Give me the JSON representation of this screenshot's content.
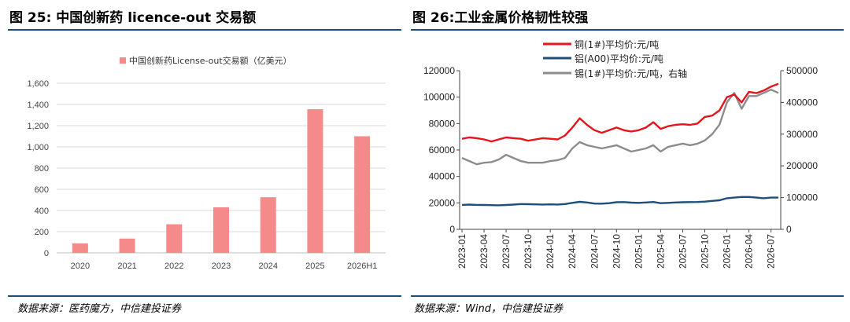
{
  "left": {
    "figure_title": "图 25:  中国创新药 licence-out 交易额",
    "source": "数据来源：医药魔方，中信建投证券",
    "colors": {
      "bar": "#f48a8a",
      "grid": "#d9d9d9"
    }
  },
  "right": {
    "figure_title": "图 26:工业金属价格韧性较强",
    "source": "数据来源：Wind，中信建投证券",
    "colors": {
      "copper": "#e8141b",
      "aluminum": "#1f4e79",
      "tin": "#8c8c8c"
    }
  },
  "chart_data": [
    {
      "type": "bar",
      "title": "",
      "categories": [
        "2020",
        "2021",
        "2022",
        "2023",
        "2024",
        "2025",
        "2026H1"
      ],
      "series": [
        {
          "name": "中国创新药License-out交易额（亿美元）",
          "values": [
            90,
            135,
            270,
            430,
            525,
            1355,
            1100
          ]
        }
      ],
      "ylim": [
        0,
        1600
      ],
      "yticks": [
        0,
        200,
        400,
        600,
        800,
        1000,
        1200,
        1400,
        1600
      ],
      "ytick_labels": [
        "0",
        "200",
        "400",
        "600",
        "800",
        "1,000",
        "1,200",
        "1,400",
        "1,600"
      ],
      "legend_position": "top-center",
      "grid": true
    },
    {
      "type": "line",
      "title": "",
      "x": [
        "2023-01",
        "2023-02",
        "2023-03",
        "2023-04",
        "2023-05",
        "2023-06",
        "2023-07",
        "2023-08",
        "2023-09",
        "2023-10",
        "2023-11",
        "2023-12",
        "2024-01",
        "2024-02",
        "2024-03",
        "2024-04",
        "2024-05",
        "2024-06",
        "2024-07",
        "2024-08",
        "2024-09",
        "2024-10",
        "2024-11",
        "2024-12",
        "2025-01",
        "2025-02",
        "2025-03",
        "2025-04",
        "2025-05",
        "2025-06",
        "2025-07",
        "2025-08",
        "2025-09",
        "2025-10",
        "2025-11",
        "2025-12",
        "2026-01",
        "2026-02",
        "2026-03",
        "2026-04",
        "2026-05",
        "2026-06",
        "2026-07",
        "2026-08"
      ],
      "xtick_labels": [
        "2023-01",
        "2023-04",
        "2023-07",
        "2023-10",
        "2024-01",
        "2024-04",
        "2024-07",
        "2024-10",
        "2025-01",
        "2025-04",
        "2025-07",
        "2025-10",
        "2026-01",
        "2026-04",
        "2026-07"
      ],
      "series": [
        {
          "name": "铜(1#)平均价:元/吨",
          "axis": "left",
          "values": [
            68500,
            69500,
            69000,
            68000,
            66500,
            68000,
            69500,
            69000,
            68500,
            67000,
            68000,
            69000,
            68500,
            68000,
            71000,
            77000,
            84000,
            79000,
            75000,
            73000,
            75000,
            77000,
            75000,
            74000,
            75000,
            77000,
            81000,
            76000,
            78000,
            79000,
            79500,
            79000,
            80000,
            85000,
            86000,
            90000,
            100000,
            102000,
            96000,
            104000,
            103000,
            105000,
            108000,
            110000
          ]
        },
        {
          "name": "铝(A00)平均价:元/吨",
          "axis": "left",
          "values": [
            18500,
            18700,
            18500,
            18400,
            18300,
            18200,
            18400,
            18700,
            19100,
            19000,
            18900,
            18800,
            18900,
            18800,
            19100,
            20000,
            20800,
            20300,
            19500,
            19400,
            19800,
            20500,
            20600,
            20200,
            20000,
            20300,
            20700,
            19800,
            20000,
            20300,
            20500,
            20600,
            20700,
            21000,
            21500,
            22000,
            23500,
            24000,
            24500,
            24500,
            24000,
            23500,
            24000,
            24000
          ]
        },
        {
          "name": "锡(1#)平均价:元/吨，右轴",
          "axis": "right",
          "values": [
            225000,
            215000,
            205000,
            210000,
            212000,
            220000,
            235000,
            225000,
            215000,
            210000,
            210000,
            210000,
            215000,
            218000,
            225000,
            255000,
            275000,
            265000,
            260000,
            255000,
            260000,
            265000,
            255000,
            245000,
            250000,
            255000,
            265000,
            245000,
            260000,
            265000,
            270000,
            265000,
            270000,
            280000,
            300000,
            330000,
            400000,
            430000,
            380000,
            420000,
            420000,
            430000,
            440000,
            430000
          ]
        }
      ],
      "ylim_left": [
        0,
        120000
      ],
      "yticks_left": [
        0,
        20000,
        40000,
        60000,
        80000,
        100000,
        120000
      ],
      "ylim_right": [
        0,
        500000
      ],
      "yticks_right": [
        0,
        100000,
        200000,
        300000,
        400000,
        500000
      ],
      "legend_position": "top-center",
      "grid": false
    }
  ]
}
